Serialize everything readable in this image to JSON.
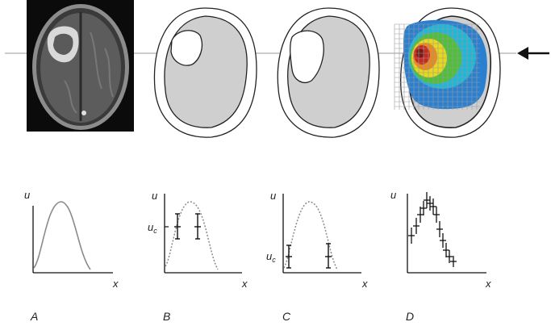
{
  "panel_labels": [
    "A",
    "B",
    "C",
    "D"
  ],
  "axis_labels": {
    "y": "u",
    "x": "x"
  },
  "critical_value_label": {
    "base": "u",
    "subscript": "c"
  },
  "arrow_icon": "arrow-left-icon",
  "colors": {
    "brain_gray": "#cfcfcf",
    "outline": "#222222",
    "curve": "#8a8a8a",
    "heat": [
      "#2b7fcf",
      "#1fb6d8",
      "#4fbf3a",
      "#e8d81e",
      "#e88a1e",
      "#c8281e",
      "#7a1a14"
    ]
  }
}
